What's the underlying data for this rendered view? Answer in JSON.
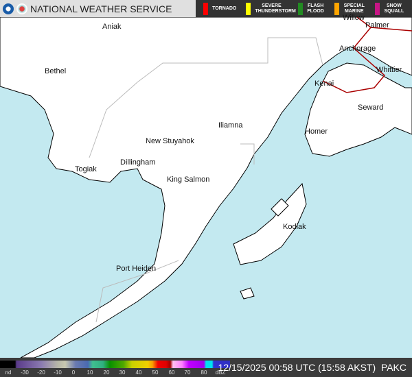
{
  "header": {
    "title": "NATIONAL WEATHER SERVICE",
    "logos": [
      "noaa-logo",
      "nws-logo"
    ],
    "legend": [
      {
        "label": "TORNADO",
        "color": "#ff0000"
      },
      {
        "label": "SEVERE THUNDERSTORM",
        "color": "#ffff00"
      },
      {
        "label": "FLASH FLOOD",
        "color": "#228b22"
      },
      {
        "label": "SPECIAL MARINE",
        "color": "#ffa500"
      },
      {
        "label": "SNOW SQUALL",
        "color": "#c71585"
      }
    ]
  },
  "map": {
    "water_color": "#c3e9f0",
    "land_color": "#ffffff",
    "cities": [
      "Aniak",
      "Bethel",
      "Willow",
      "Palmer",
      "Anchorage",
      "Kenai",
      "Whittier",
      "Seward",
      "Iliamna",
      "Homer",
      "New Stuyahok",
      "Dillingham",
      "Togiak",
      "King Salmon",
      "Kodiak",
      "Port Heiden"
    ]
  },
  "scale": {
    "labels": [
      "nd",
      "-30",
      "-20",
      "-10",
      "0",
      "10",
      "20",
      "30",
      "40",
      "50",
      "60",
      "70",
      "80",
      "dBZ"
    ]
  },
  "timestamp": "12/15/2025 00:58 UTC (15:58 AKST)  PAKC"
}
